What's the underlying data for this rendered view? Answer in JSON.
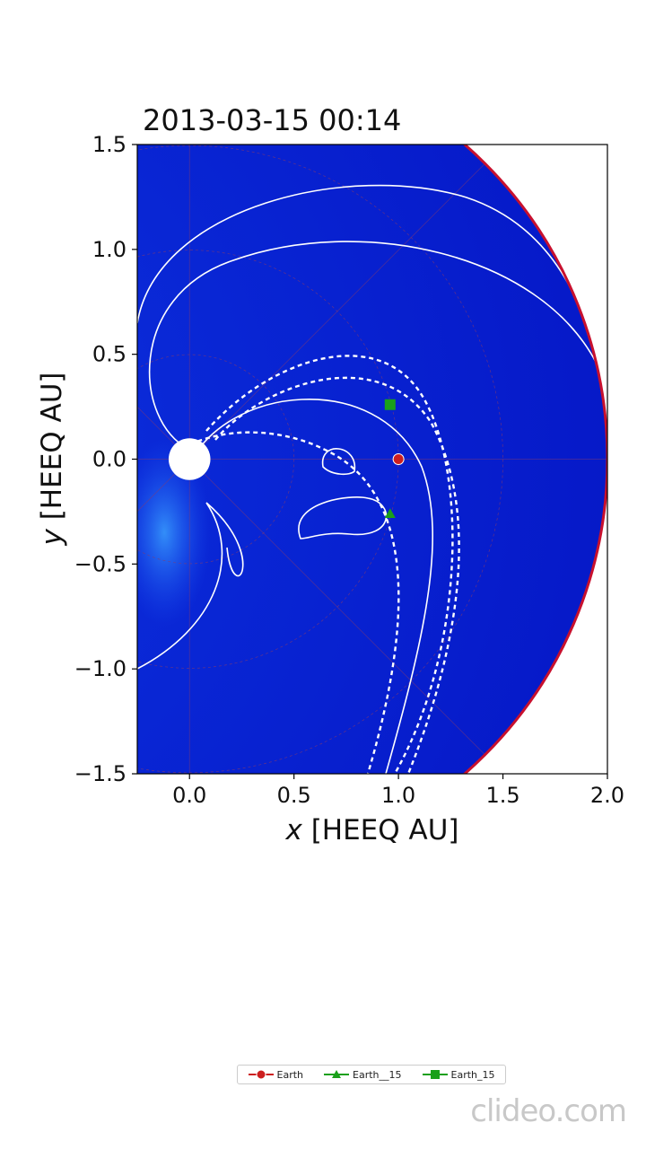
{
  "chart_data": {
    "type": "scatter",
    "title": "2013-03-15 00:14",
    "xlabel_var": "x",
    "xlabel_unit": "[HEEQ AU]",
    "ylabel_var": "y",
    "ylabel_unit": "[HEEQ AU]",
    "xlim": [
      -0.25,
      2.0
    ],
    "ylim": [
      -1.5,
      1.5
    ],
    "xticks": [
      0.0,
      0.5,
      1.0,
      1.5,
      2.0
    ],
    "xtick_labels": [
      "0.0",
      "0.5",
      "1.0",
      "1.5",
      "2.0"
    ],
    "yticks": [
      1.5,
      1.0,
      0.5,
      0.0,
      -0.5,
      -1.0,
      -1.5
    ],
    "ytick_labels": [
      "1.5",
      "1.0",
      "0.5",
      "0.0",
      "−0.5",
      "−1.0",
      "−1.5"
    ],
    "legend_placement": "bottom-center",
    "series": [
      {
        "name": "Earth",
        "marker": "circle",
        "color": "#cc1f1f",
        "x": 1.0,
        "y": 0.0
      },
      {
        "name": "Earth__15",
        "marker": "triangle",
        "color": "#1aa01a",
        "x": 0.96,
        "y": -0.26
      },
      {
        "name": "Earth_15",
        "marker": "square",
        "color": "#1aa01a",
        "x": 0.96,
        "y": 0.26
      }
    ],
    "outer_boundary_color": "#c8102e",
    "background_field_color": "#0a1fd6"
  },
  "watermark": "clideo.com"
}
